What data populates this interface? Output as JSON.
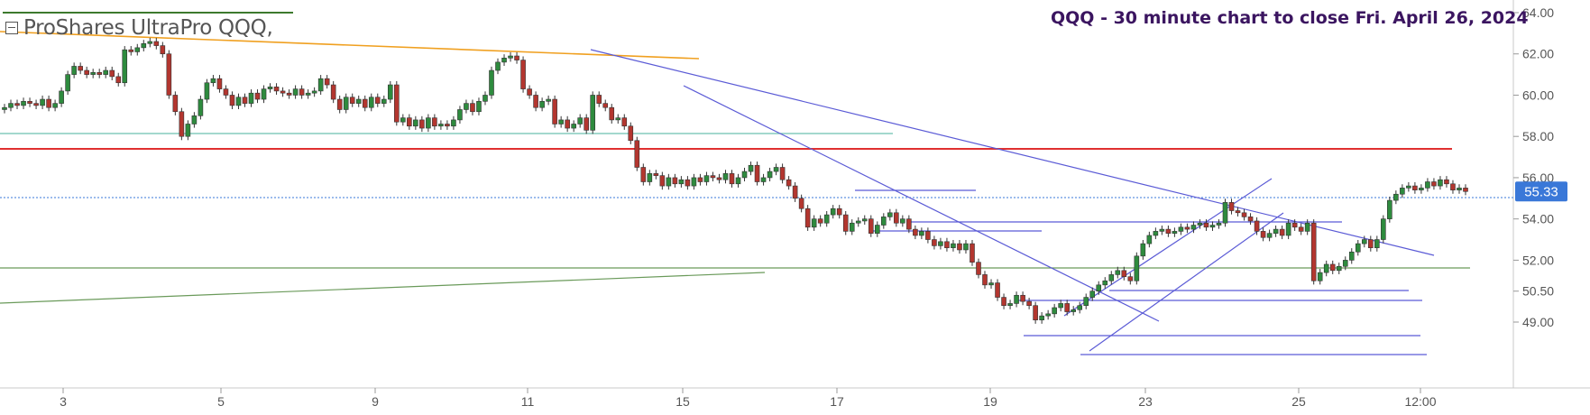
{
  "instrument": {
    "name": "ProShares UltraPro QQQ,",
    "toggle_icon": "collapse-square-icon"
  },
  "chart_title": "QQQ - 30 minute chart to close Fri. April 26, 2024",
  "price_label": "55.33",
  "colors": {
    "up": "#2e8b3e",
    "down": "#b3362f",
    "trendline": "#5b5bd6",
    "support_line": "#e03030",
    "orange_line": "#f0a020",
    "green_line": "#6a9a5a",
    "teal_line": "#6cc0b0",
    "price_badge": "#3a78d8",
    "title": "#3b1560"
  },
  "chart_data": {
    "type": "candlestick",
    "title": "QQQ - 30 minute chart to close Fri. April 26, 2024",
    "ylim": [
      48.4,
      64.3
    ],
    "y_ticks": [
      "64.00",
      "62.00",
      "60.00",
      "58.00",
      "56.00",
      "54.00",
      "52.00",
      "50.50",
      "49.00"
    ],
    "y_tick_values": [
      64.0,
      62.0,
      60.0,
      58.0,
      56.0,
      54.0,
      52.0,
      50.5,
      49.0
    ],
    "x_ticks": [
      "3",
      "5",
      "9",
      "11",
      "15",
      "17",
      "19",
      "23",
      "25",
      "12:00"
    ],
    "last_price": 55.33,
    "grid": false,
    "drawn_levels": [
      57.5,
      52.3,
      58.1
    ],
    "closes": [
      59.4,
      59.6,
      59.5,
      59.7,
      59.6,
      59.5,
      59.8,
      59.4,
      59.6,
      60.2,
      61.0,
      61.4,
      61.2,
      61.0,
      61.1,
      61.0,
      61.2,
      60.9,
      60.6,
      62.2,
      62.1,
      62.3,
      62.5,
      62.6,
      62.4,
      62.0,
      60.0,
      59.2,
      58.0,
      58.6,
      59.0,
      59.8,
      60.6,
      60.8,
      60.3,
      60.0,
      59.5,
      59.9,
      59.6,
      60.1,
      59.8,
      60.3,
      60.4,
      60.2,
      60.1,
      60.0,
      60.3,
      60.0,
      60.1,
      60.2,
      60.8,
      60.5,
      59.8,
      59.3,
      59.9,
      59.6,
      59.8,
      59.4,
      59.9,
      59.6,
      59.8,
      60.5,
      58.7,
      58.9,
      58.5,
      58.8,
      58.4,
      58.9,
      58.5,
      58.6,
      58.5,
      58.8,
      59.3,
      59.6,
      59.2,
      59.7,
      60.0,
      61.2,
      61.6,
      61.8,
      61.9,
      61.7,
      60.3,
      60.0,
      59.4,
      59.7,
      59.8,
      58.6,
      58.8,
      58.4,
      58.6,
      58.9,
      58.3,
      60.0,
      59.6,
      59.4,
      58.8,
      58.9,
      58.5,
      57.8,
      56.5,
      55.8,
      56.2,
      56.1,
      55.6,
      56.0,
      55.7,
      55.9,
      55.6,
      56.0,
      55.8,
      56.1,
      56.0,
      55.9,
      56.2,
      55.7,
      56.0,
      56.3,
      56.6,
      55.8,
      56.0,
      56.3,
      56.5,
      55.9,
      55.6,
      55.0,
      54.5,
      53.6,
      54.0,
      53.8,
      54.2,
      54.5,
      54.2,
      53.4,
      53.8,
      53.9,
      54.0,
      53.3,
      53.7,
      54.1,
      54.3,
      53.8,
      54.0,
      53.5,
      53.2,
      53.4,
      53.0,
      52.7,
      52.9,
      52.6,
      52.8,
      52.5,
      52.8,
      51.9,
      51.3,
      50.8,
      50.9,
      50.2,
      49.8,
      49.9,
      50.3,
      50.0,
      49.8,
      49.1,
      49.3,
      49.4,
      49.7,
      49.9,
      49.5,
      49.6,
      49.8,
      50.2,
      50.5,
      50.8,
      51.0,
      51.3,
      51.5,
      51.2,
      51.0,
      52.2,
      52.8,
      53.2,
      53.4,
      53.5,
      53.3,
      53.4,
      53.6,
      53.5,
      53.7,
      53.8,
      53.6,
      53.7,
      53.8,
      54.8,
      54.4,
      54.3,
      54.1,
      53.9,
      53.4,
      53.1,
      53.3,
      53.5,
      53.2,
      53.8,
      53.6,
      53.4,
      53.8,
      51.0,
      51.4,
      51.8,
      51.5,
      51.7,
      52.0,
      52.4,
      52.8,
      53.0,
      52.6,
      53.0,
      54.0,
      54.9,
      55.2,
      55.5,
      55.6,
      55.4,
      55.5,
      55.8,
      55.6,
      55.9,
      55.7,
      55.4,
      55.5,
      55.33
    ]
  }
}
